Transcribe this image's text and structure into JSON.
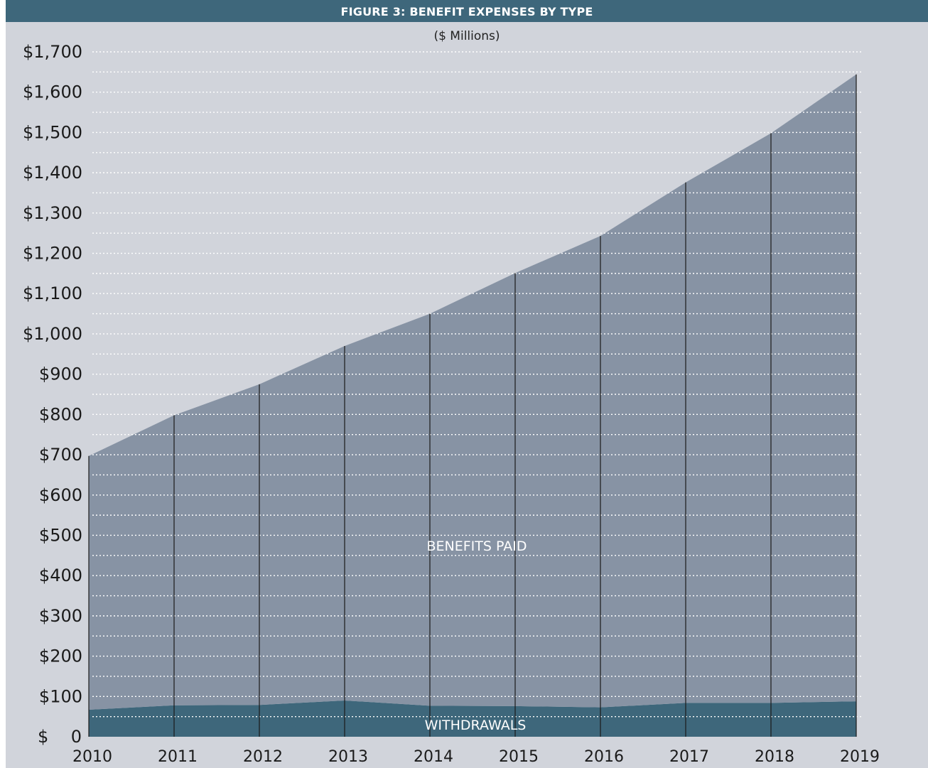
{
  "chart_data": {
    "type": "area",
    "stacked": true,
    "title": "FIGURE 3: BENEFIT EXPENSES BY TYPE",
    "subtitle": "($ Millions)",
    "x": [
      2010,
      2011,
      2012,
      2013,
      2014,
      2015,
      2016,
      2017,
      2018,
      2019
    ],
    "x_tick_labels": [
      "2010",
      "2011",
      "2012",
      "2013",
      "2014",
      "2015",
      "2016",
      "2017",
      "2018",
      "2019"
    ],
    "series": [
      {
        "name": "WITHDRAWALS",
        "values": [
          67,
          78,
          79,
          90,
          77,
          76,
          73,
          84,
          84,
          88
        ],
        "color": "#3e677b"
      },
      {
        "name": "BENEFITS PAID",
        "values": [
          630,
          720,
          796,
          880,
          973,
          1075,
          1170,
          1292,
          1414,
          1556
        ],
        "color": "#8793a4"
      }
    ],
    "ylim": [
      0,
      1700
    ],
    "y_ticks": [
      0,
      100,
      200,
      300,
      400,
      500,
      600,
      700,
      800,
      900,
      1000,
      1100,
      1200,
      1300,
      1400,
      1500,
      1600,
      1700
    ],
    "y_tick_labels": [
      "$ 0",
      "$100",
      "$200",
      "$300",
      "$400",
      "$500",
      "$600",
      "$700",
      "$800",
      "$900",
      "$1,000",
      "$1,100",
      "$1,200",
      "$1,300",
      "$1,400",
      "$1,500",
      "$1,600",
      "$1,700"
    ],
    "grid": "dotted horizontal",
    "background_color": "#d1d4db",
    "header_color": "#3e677b"
  }
}
